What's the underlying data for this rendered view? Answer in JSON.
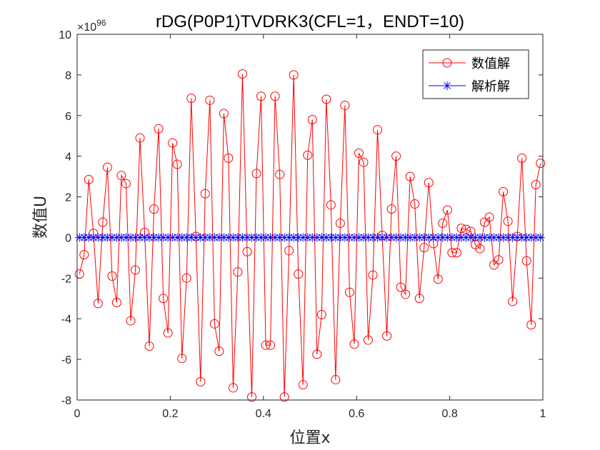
{
  "chart_data": {
    "type": "scatter",
    "title": "rDG(P0P1)TVDRK3(CFL=1，ENDT=10)",
    "xlabel": "位置x",
    "ylabel": "数值U",
    "y_multiplier_label": "×10",
    "y_multiplier_exponent": "96",
    "xlim": [
      0,
      1
    ],
    "ylim": [
      -8,
      10
    ],
    "xticks": [
      "0",
      "0.2",
      "0.4",
      "0.6",
      "0.8",
      "1"
    ],
    "yticks": [
      "-8",
      "-6",
      "-4",
      "-2",
      "0",
      "2",
      "4",
      "6",
      "8",
      "10"
    ],
    "legend_position": "top-right",
    "series": [
      {
        "name": "数值解",
        "color": "#ff0000",
        "marker": "circle",
        "x": [
          0.005,
          0.015,
          0.025,
          0.035,
          0.045,
          0.055,
          0.065,
          0.075,
          0.085,
          0.095,
          0.105,
          0.115,
          0.125,
          0.135,
          0.145,
          0.155,
          0.165,
          0.175,
          0.185,
          0.195,
          0.205,
          0.215,
          0.225,
          0.235,
          0.245,
          0.255,
          0.265,
          0.275,
          0.285,
          0.295,
          0.305,
          0.315,
          0.325,
          0.335,
          0.345,
          0.355,
          0.365,
          0.375,
          0.385,
          0.395,
          0.405,
          0.415,
          0.425,
          0.435,
          0.445,
          0.455,
          0.465,
          0.475,
          0.485,
          0.495,
          0.505,
          0.515,
          0.525,
          0.535,
          0.545,
          0.555,
          0.565,
          0.575,
          0.585,
          0.595,
          0.605,
          0.615,
          0.625,
          0.635,
          0.645,
          0.655,
          0.665,
          0.675,
          0.685,
          0.695,
          0.705,
          0.715,
          0.725,
          0.735,
          0.745,
          0.755,
          0.765,
          0.775,
          0.785,
          0.795,
          0.805,
          0.815,
          0.825,
          0.835,
          0.845,
          0.855,
          0.865,
          0.875,
          0.885,
          0.895,
          0.905,
          0.915,
          0.925,
          0.935,
          0.945,
          0.955,
          0.965,
          0.975,
          0.985,
          0.995
        ],
        "values": [
          -1.8,
          -0.85,
          2.85,
          0.2,
          -3.25,
          0.75,
          3.45,
          -1.9,
          -3.2,
          3.05,
          2.65,
          -4.1,
          -1.6,
          4.9,
          0.25,
          -5.35,
          1.4,
          5.35,
          -3.0,
          -4.7,
          4.65,
          3.6,
          -5.95,
          -2.0,
          6.85,
          0.05,
          -7.1,
          2.15,
          6.75,
          -4.25,
          -5.6,
          6.1,
          3.9,
          -7.4,
          -1.7,
          8.05,
          -0.7,
          -7.85,
          3.15,
          6.95,
          -5.3,
          -5.3,
          6.95,
          3.1,
          -7.85,
          -0.65,
          8.0,
          -1.8,
          -7.25,
          4.05,
          5.8,
          -5.75,
          -3.8,
          6.8,
          1.6,
          -7.0,
          0.7,
          6.5,
          -2.7,
          -5.25,
          4.15,
          3.7,
          -5.05,
          -1.85,
          5.3,
          0.1,
          -4.85,
          1.4,
          4.0,
          -2.45,
          -2.8,
          3.0,
          1.65,
          -3.0,
          -0.5,
          2.7,
          -0.3,
          -2.05,
          0.7,
          1.35,
          -0.75,
          -0.75,
          0.45,
          0.4,
          0.3,
          -0.35,
          -0.55,
          0.75,
          1.0,
          -1.35,
          -1.1,
          2.25,
          0.8,
          -3.15,
          0.05,
          3.9,
          -1.15,
          -4.3,
          2.6,
          3.65
        ]
      },
      {
        "name": "解析解",
        "color": "#0000ff",
        "marker": "asterisk",
        "x": [
          0.005,
          0.015,
          0.025,
          0.035,
          0.045,
          0.055,
          0.065,
          0.075,
          0.085,
          0.095,
          0.105,
          0.115,
          0.125,
          0.135,
          0.145,
          0.155,
          0.165,
          0.175,
          0.185,
          0.195,
          0.205,
          0.215,
          0.225,
          0.235,
          0.245,
          0.255,
          0.265,
          0.275,
          0.285,
          0.295,
          0.305,
          0.315,
          0.325,
          0.335,
          0.345,
          0.355,
          0.365,
          0.375,
          0.385,
          0.395,
          0.405,
          0.415,
          0.425,
          0.435,
          0.445,
          0.455,
          0.465,
          0.475,
          0.485,
          0.495,
          0.505,
          0.515,
          0.525,
          0.535,
          0.545,
          0.555,
          0.565,
          0.575,
          0.585,
          0.595,
          0.605,
          0.615,
          0.625,
          0.635,
          0.645,
          0.655,
          0.665,
          0.675,
          0.685,
          0.695,
          0.705,
          0.715,
          0.725,
          0.735,
          0.745,
          0.755,
          0.765,
          0.775,
          0.785,
          0.795,
          0.805,
          0.815,
          0.825,
          0.835,
          0.845,
          0.855,
          0.865,
          0.875,
          0.885,
          0.895,
          0.905,
          0.915,
          0.925,
          0.935,
          0.945,
          0.955,
          0.965,
          0.975,
          0.985,
          0.995
        ],
        "values": [
          0,
          0,
          0,
          0,
          0,
          0,
          0,
          0,
          0,
          0,
          0,
          0,
          0,
          0,
          0,
          0,
          0,
          0,
          0,
          0,
          0,
          0,
          0,
          0,
          0,
          0,
          0,
          0,
          0,
          0,
          0,
          0,
          0,
          0,
          0,
          0,
          0,
          0,
          0,
          0,
          0,
          0,
          0,
          0,
          0,
          0,
          0,
          0,
          0,
          0,
          0,
          0,
          0,
          0,
          0,
          0,
          0,
          0,
          0,
          0,
          0,
          0,
          0,
          0,
          0,
          0,
          0,
          0,
          0,
          0,
          0,
          0,
          0,
          0,
          0,
          0,
          0,
          0,
          0,
          0,
          0,
          0,
          0,
          0,
          0,
          0,
          0,
          0,
          0,
          0,
          0,
          0,
          0,
          0,
          0,
          0,
          0,
          0,
          0,
          0
        ]
      }
    ]
  }
}
